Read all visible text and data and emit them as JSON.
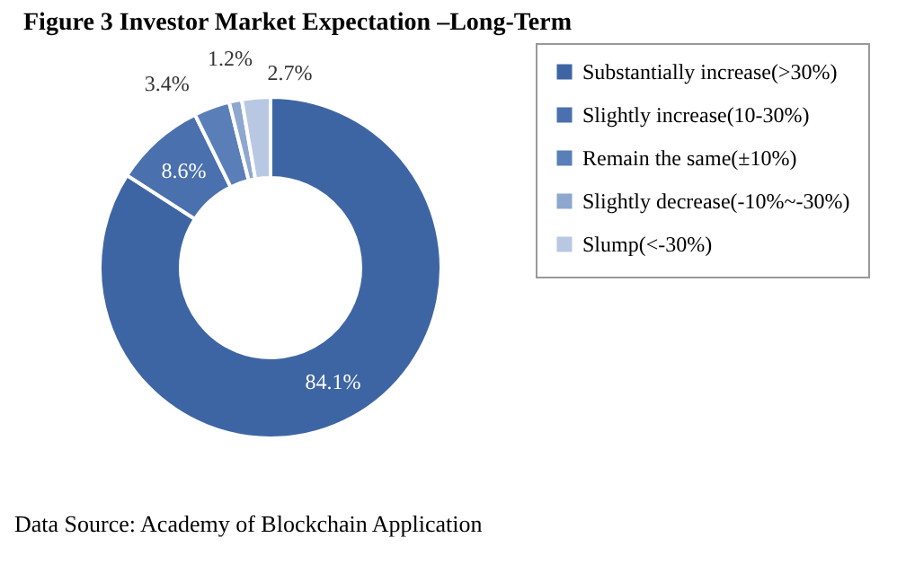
{
  "chart_data": {
    "type": "donut",
    "title": "Figure 3 Investor Market Expectation –Long-Term",
    "categories": [
      "Substantially increase(>30%)",
      "Slightly increase(10-30%)",
      "Remain the same(±10%)",
      "Slightly decrease(-10%~-30%)",
      "Slump(<-30%)"
    ],
    "values": [
      84.1,
      8.6,
      3.4,
      1.2,
      2.7
    ],
    "value_labels": [
      "84.1%",
      "8.6%",
      "3.4%",
      "1.2%",
      "2.7%"
    ],
    "colors": [
      "#3e65a3",
      "#4a70ae",
      "#5a7fb8",
      "#8ea7cf",
      "#b9c8e2"
    ],
    "legend": "right",
    "annotations": [
      "Data Source: Academy of Blockchain Application"
    ]
  }
}
